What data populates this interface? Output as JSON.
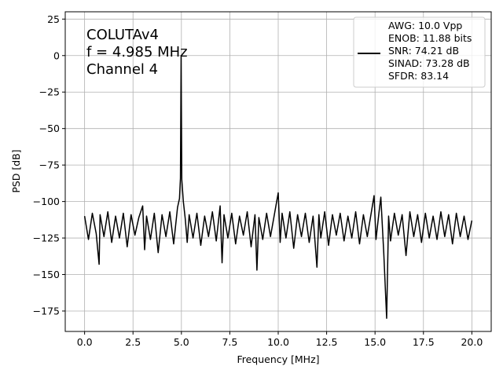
{
  "chart_data": {
    "type": "line",
    "xlabel": "Frequency [MHz]",
    "ylabel": "PSD [dB]",
    "annotation": [
      "COLUTAv4",
      "f = 4.985 MHz",
      "Channel 4"
    ],
    "x": [
      0,
      0.2,
      0.4,
      0.6,
      0.75,
      0.8,
      1,
      1.2,
      1.4,
      1.6,
      1.8,
      2,
      2.2,
      2.4,
      2.6,
      2.8,
      3,
      3.1,
      3.2,
      3.4,
      3.6,
      3.8,
      4,
      4.2,
      4.4,
      4.6,
      4.8,
      4.9,
      4.95,
      4.985,
      5.02,
      5.1,
      5.2,
      5.3,
      5.4,
      5.6,
      5.8,
      6,
      6.2,
      6.4,
      6.6,
      6.8,
      7,
      7.1,
      7.2,
      7.4,
      7.6,
      7.8,
      8,
      8.2,
      8.4,
      8.6,
      8.8,
      8.9,
      9,
      9.2,
      9.4,
      9.6,
      9.8,
      10,
      10.1,
      10.2,
      10.4,
      10.6,
      10.8,
      11,
      11.2,
      11.4,
      11.6,
      11.8,
      12,
      12.1,
      12.2,
      12.4,
      12.6,
      12.8,
      13,
      13.2,
      13.4,
      13.6,
      13.8,
      14,
      14.2,
      14.4,
      14.6,
      14.8,
      14.95,
      15.05,
      15.2,
      15.3,
      15.45,
      15.6,
      15.7,
      15.8,
      16,
      16.2,
      16.4,
      16.6,
      16.8,
      17,
      17.2,
      17.4,
      17.6,
      17.8,
      18,
      18.2,
      18.4,
      18.6,
      18.8,
      19,
      19.2,
      19.4,
      19.6,
      19.8,
      20
    ],
    "series": [
      {
        "name": "AWG: 10.0 Vpp\nENOB: 11.88 bits\nSNR: 74.21 dB\nSINAD: 73.28 dB\nSFDR: 83.14",
        "color": "#000000",
        "values": [
          -110,
          -126,
          -108,
          -122,
          -143,
          -109,
          -124,
          -107,
          -128,
          -110,
          -125,
          -108,
          -131,
          -109,
          -123,
          -111,
          -103,
          -133,
          -110,
          -126,
          -108,
          -135,
          -109,
          -124,
          -107,
          -129,
          -104,
          -98,
          -84,
          0,
          -85,
          -100,
          -112,
          -128,
          -109,
          -125,
          -108,
          -130,
          -110,
          -124,
          -107,
          -127,
          -103,
          -142,
          -109,
          -125,
          -108,
          -129,
          -110,
          -123,
          -107,
          -131,
          -109,
          -147,
          -111,
          -126,
          -108,
          -124,
          -109,
          -94,
          -128,
          -108,
          -125,
          -107,
          -132,
          -109,
          -124,
          -108,
          -128,
          -110,
          -145,
          -109,
          -125,
          -107,
          -130,
          -109,
          -123,
          -108,
          -127,
          -110,
          -125,
          -107,
          -129,
          -109,
          -124,
          -108,
          -96,
          -126,
          -108,
          -97,
          -135,
          -180,
          -110,
          -127,
          -108,
          -123,
          -109,
          -137,
          -107,
          -124,
          -109,
          -128,
          -108,
          -125,
          -110,
          -126,
          -107,
          -124,
          -109,
          -129,
          -108,
          -124,
          -110,
          -126,
          -113
        ]
      }
    ],
    "xlim": [
      -1,
      21
    ],
    "xticks": [
      {
        "value": 0,
        "label": "0.0"
      },
      2.5,
      {
        "value": 5,
        "label": "5.0"
      },
      7.5,
      {
        "value": 10,
        "label": "10.0"
      },
      12.5,
      {
        "value": 15,
        "label": "15.0"
      },
      17.5,
      {
        "value": 20,
        "label": "20.0"
      }
    ],
    "ylim": [
      -189,
      30
    ],
    "yticks": [
      25,
      0,
      {
        "value": -25,
        "label": "−25"
      },
      {
        "value": -50,
        "label": "−50"
      },
      {
        "value": -75,
        "label": "−75"
      },
      {
        "value": -100,
        "label": "−100"
      },
      {
        "value": -125,
        "label": "−125"
      },
      {
        "value": -150,
        "label": "−150"
      },
      {
        "value": -175,
        "label": "−175"
      }
    ],
    "grid": true,
    "legend": "upper right"
  }
}
